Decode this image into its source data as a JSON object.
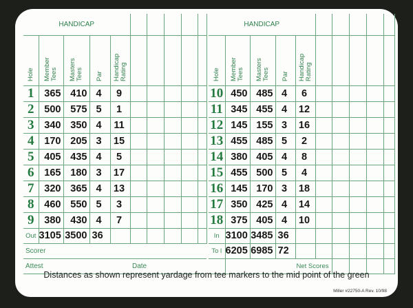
{
  "header": {
    "handicap_label": "HANDICAP"
  },
  "columns": [
    "Hole",
    "Member\nTees",
    "Masters\nTees",
    "Par",
    "Handicap\nRating"
  ],
  "front_nine": [
    {
      "hole": "1",
      "member": "365",
      "masters": "410",
      "par": "4",
      "hcp": "9"
    },
    {
      "hole": "2",
      "member": "500",
      "masters": "575",
      "par": "5",
      "hcp": "1"
    },
    {
      "hole": "3",
      "member": "340",
      "masters": "350",
      "par": "4",
      "hcp": "11"
    },
    {
      "hole": "4",
      "member": "170",
      "masters": "205",
      "par": "3",
      "hcp": "15"
    },
    {
      "hole": "5",
      "member": "405",
      "masters": "435",
      "par": "4",
      "hcp": "5"
    },
    {
      "hole": "6",
      "member": "165",
      "masters": "180",
      "par": "3",
      "hcp": "17"
    },
    {
      "hole": "7",
      "member": "320",
      "masters": "365",
      "par": "4",
      "hcp": "13"
    },
    {
      "hole": "8",
      "member": "460",
      "masters": "550",
      "par": "5",
      "hcp": "3"
    },
    {
      "hole": "9",
      "member": "380",
      "masters": "430",
      "par": "4",
      "hcp": "7"
    }
  ],
  "back_nine": [
    {
      "hole": "10",
      "member": "450",
      "masters": "485",
      "par": "4",
      "hcp": "6"
    },
    {
      "hole": "11",
      "member": "345",
      "masters": "455",
      "par": "4",
      "hcp": "12"
    },
    {
      "hole": "12",
      "member": "145",
      "masters": "155",
      "par": "3",
      "hcp": "16"
    },
    {
      "hole": "13",
      "member": "455",
      "masters": "485",
      "par": "5",
      "hcp": "2"
    },
    {
      "hole": "14",
      "member": "380",
      "masters": "405",
      "par": "4",
      "hcp": "8"
    },
    {
      "hole": "15",
      "member": "455",
      "masters": "500",
      "par": "5",
      "hcp": "4"
    },
    {
      "hole": "16",
      "member": "145",
      "masters": "170",
      "par": "3",
      "hcp": "18"
    },
    {
      "hole": "17",
      "member": "350",
      "masters": "425",
      "par": "4",
      "hcp": "14"
    },
    {
      "hole": "18",
      "member": "375",
      "masters": "405",
      "par": "4",
      "hcp": "10"
    }
  ],
  "out": {
    "label": "Out",
    "member": "3105",
    "masters": "3500",
    "par": "36"
  },
  "in": {
    "label": "In",
    "member": "3100",
    "masters": "3485",
    "par": "36"
  },
  "total": {
    "label": "To l",
    "member": "6205",
    "masters": "6985",
    "par": "72"
  },
  "labels": {
    "scorer": "Scorer",
    "attest": "Attest",
    "date": "Date",
    "net_scores": "Net Scores"
  },
  "footer": {
    "note": "Distances as shown represent yardage from tee markers  to the mid point of the green",
    "printer": "Miller #22750-A Rev. 10/98"
  },
  "colors": {
    "ink_green": "#2e7f4c",
    "rule_green": "#6aa57e",
    "card": "#fdfdfb"
  }
}
